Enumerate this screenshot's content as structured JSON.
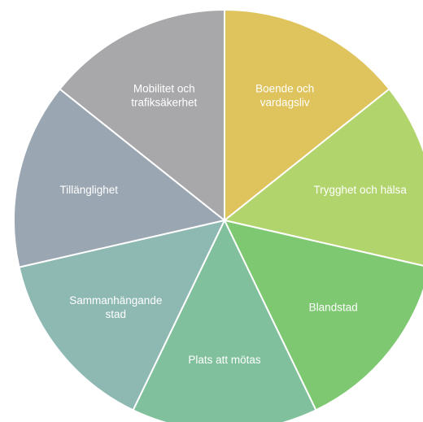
{
  "chart_data": {
    "type": "pie",
    "title": "",
    "slices": [
      {
        "label": [
          "Boende och",
          "vardagsliv"
        ],
        "value": 1,
        "color": "#dfc35c"
      },
      {
        "label": [
          "Trygghet och hälsa"
        ],
        "value": 1,
        "color": "#b2d46c"
      },
      {
        "label": [
          "Blandstad"
        ],
        "value": 1,
        "color": "#7ec872"
      },
      {
        "label": [
          "Plats att mötas"
        ],
        "value": 1,
        "color": "#80c09c"
      },
      {
        "label": [
          "Sammanhängande",
          "stad"
        ],
        "value": 1,
        "color": "#8eb8b2"
      },
      {
        "label": [
          "Tillänglighet"
        ],
        "value": 1,
        "color": "#9aa6b2"
      },
      {
        "label": [
          "Mobilitet och",
          "trafiksäkerhet"
        ],
        "value": 1,
        "color": "#a8a8aa"
      }
    ]
  }
}
